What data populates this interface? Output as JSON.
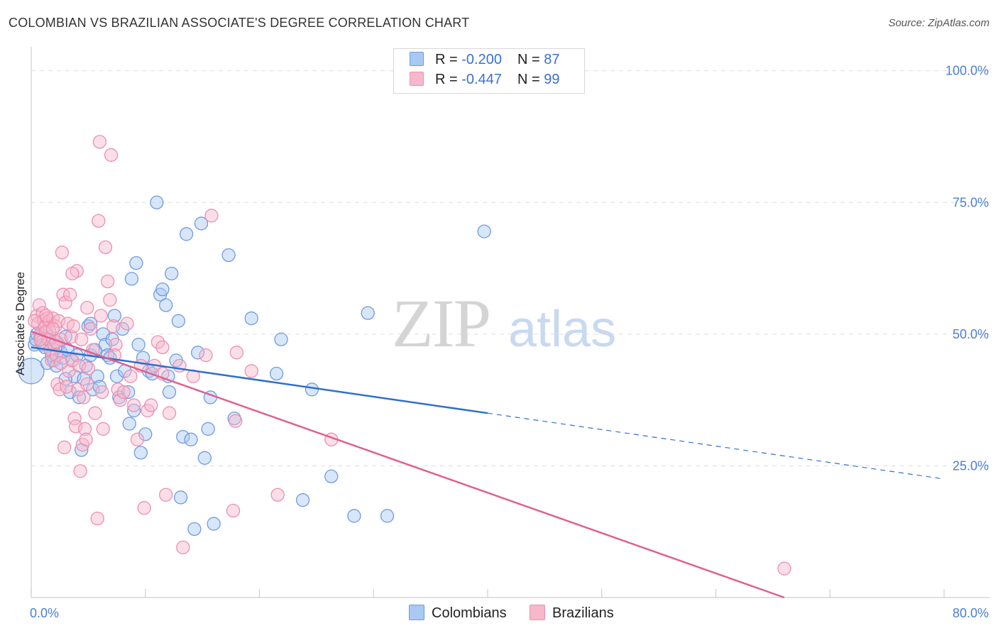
{
  "title": "COLOMBIAN VS BRAZILIAN ASSOCIATE'S DEGREE CORRELATION CHART",
  "source": "Source: ZipAtlas.com",
  "watermark": {
    "zip": "ZIP",
    "atlas": "atlas"
  },
  "legend": {
    "colombians": {
      "r_label": "R = ",
      "r_value": "-0.200",
      "n_label": "N = ",
      "n_value": "87"
    },
    "brazilians": {
      "r_label": "R = ",
      "r_value": "-0.447",
      "n_label": "N = ",
      "n_value": "99"
    }
  },
  "bottom_legend": {
    "colombians": "Colombians",
    "brazilians": "Brazilians"
  },
  "colors": {
    "blue_fill": "#a9c8f2",
    "blue_stroke": "#6f9be0",
    "blue_line": "#2f6fcf",
    "pink_fill": "#f7b8cb",
    "pink_stroke": "#ee8fae",
    "pink_line": "#e0608d",
    "tick": "#4a7fd6",
    "grid": "#dddddd"
  },
  "chart_data": {
    "type": "scatter",
    "title": "COLOMBIAN VS BRAZILIAN ASSOCIATE'S DEGREE CORRELATION CHART",
    "xlabel": "",
    "ylabel": "Associate's Degree",
    "xlim": [
      0,
      80
    ],
    "ylim": [
      0,
      104
    ],
    "x_tick_labels": [
      "0.0%",
      "80.0%"
    ],
    "y_tick_labels": [
      "25.0%",
      "50.0%",
      "75.0%",
      "100.0%"
    ],
    "y_ticks": [
      25,
      50,
      75,
      100
    ],
    "grid": true,
    "legend_position": "top-center",
    "series": [
      {
        "name": "Colombians",
        "color": "#6f9be0",
        "points": [
          [
            0.0,
            43.0
          ],
          [
            0.3,
            48.0
          ],
          [
            0.4,
            49.0
          ],
          [
            0.5,
            50.0
          ],
          [
            0.8,
            49.5
          ],
          [
            1.0,
            48.0
          ],
          [
            1.2,
            47.5
          ],
          [
            1.4,
            44.5
          ],
          [
            1.6,
            49.0
          ],
          [
            1.8,
            46.0
          ],
          [
            2.0,
            45.0
          ],
          [
            2.2,
            44.0
          ],
          [
            2.4,
            48.0
          ],
          [
            2.6,
            46.5
          ],
          [
            2.8,
            45.5
          ],
          [
            3.0,
            49.5
          ],
          [
            3.2,
            47.0
          ],
          [
            3.4,
            39.0
          ],
          [
            3.6,
            45.0
          ],
          [
            3.8,
            42.0
          ],
          [
            4.0,
            46.0
          ],
          [
            4.2,
            38.0
          ],
          [
            4.4,
            28.0
          ],
          [
            4.6,
            41.5
          ],
          [
            4.8,
            44.0
          ],
          [
            5.0,
            51.5
          ],
          [
            5.2,
            46.0
          ],
          [
            5.4,
            39.5
          ],
          [
            5.6,
            47.0
          ],
          [
            5.8,
            42.0
          ],
          [
            6.0,
            40.0
          ],
          [
            6.3,
            50.0
          ],
          [
            6.5,
            48.0
          ],
          [
            6.7,
            46.0
          ],
          [
            6.9,
            45.5
          ],
          [
            7.1,
            49.0
          ],
          [
            7.3,
            53.5
          ],
          [
            7.5,
            42.0
          ],
          [
            7.7,
            38.0
          ],
          [
            8.0,
            51.0
          ],
          [
            8.2,
            43.0
          ],
          [
            8.5,
            39.0
          ],
          [
            8.8,
            60.5
          ],
          [
            9.0,
            35.5
          ],
          [
            9.2,
            63.5
          ],
          [
            9.4,
            48.0
          ],
          [
            9.6,
            27.5
          ],
          [
            9.8,
            45.5
          ],
          [
            10.0,
            31.0
          ],
          [
            10.3,
            43.0
          ],
          [
            10.6,
            42.5
          ],
          [
            11.0,
            75.0
          ],
          [
            11.3,
            57.5
          ],
          [
            11.5,
            58.5
          ],
          [
            11.8,
            55.5
          ],
          [
            12.1,
            39.0
          ],
          [
            12.3,
            61.5
          ],
          [
            12.7,
            45.0
          ],
          [
            12.9,
            52.5
          ],
          [
            13.1,
            19.0
          ],
          [
            13.3,
            30.5
          ],
          [
            13.6,
            69.0
          ],
          [
            14.0,
            30.0
          ],
          [
            14.3,
            13.0
          ],
          [
            14.6,
            46.5
          ],
          [
            14.9,
            71.0
          ],
          [
            15.2,
            26.5
          ],
          [
            15.5,
            32.0
          ],
          [
            15.7,
            38.0
          ],
          [
            16.0,
            14.0
          ],
          [
            17.3,
            65.0
          ],
          [
            17.8,
            34.0
          ],
          [
            19.3,
            53.0
          ],
          [
            21.5,
            42.5
          ],
          [
            21.9,
            49.0
          ],
          [
            23.8,
            18.5
          ],
          [
            24.6,
            39.5
          ],
          [
            26.3,
            23.0
          ],
          [
            28.3,
            15.5
          ],
          [
            29.5,
            54.0
          ],
          [
            31.2,
            15.5
          ],
          [
            39.7,
            69.5
          ],
          [
            3.0,
            41.5
          ],
          [
            5.2,
            52.0
          ],
          [
            8.6,
            33.0
          ],
          [
            12.0,
            42.0
          ],
          [
            1.6,
            50.5
          ]
        ],
        "trend": {
          "x0": 0,
          "y0": 47.5,
          "x1": 40,
          "y1": 35.0,
          "dashed_to_x": 80,
          "dashed_to_y": 22.5
        }
      },
      {
        "name": "Brazilians",
        "color": "#ee8fae",
        "points": [
          [
            0.5,
            53.5
          ],
          [
            0.6,
            52.0
          ],
          [
            0.7,
            55.5
          ],
          [
            0.8,
            50.0
          ],
          [
            0.9,
            48.5
          ],
          [
            1.0,
            54.0
          ],
          [
            1.1,
            52.5
          ],
          [
            1.2,
            51.5
          ],
          [
            1.3,
            50.5
          ],
          [
            1.4,
            53.0
          ],
          [
            1.5,
            49.0
          ],
          [
            1.6,
            52.5
          ],
          [
            1.7,
            47.0
          ],
          [
            1.8,
            45.0
          ],
          [
            1.9,
            53.0
          ],
          [
            2.0,
            48.0
          ],
          [
            2.1,
            51.5
          ],
          [
            2.2,
            46.0
          ],
          [
            2.3,
            40.5
          ],
          [
            2.4,
            52.5
          ],
          [
            2.5,
            39.5
          ],
          [
            2.6,
            49.0
          ],
          [
            2.7,
            65.5
          ],
          [
            2.8,
            57.5
          ],
          [
            2.9,
            28.5
          ],
          [
            3.0,
            56.0
          ],
          [
            3.1,
            40.0
          ],
          [
            3.2,
            52.0
          ],
          [
            3.3,
            43.0
          ],
          [
            3.4,
            57.5
          ],
          [
            3.5,
            49.5
          ],
          [
            3.6,
            45.0
          ],
          [
            3.7,
            51.5
          ],
          [
            3.8,
            34.0
          ],
          [
            3.9,
            32.5
          ],
          [
            4.0,
            62.0
          ],
          [
            4.1,
            39.5
          ],
          [
            4.2,
            44.0
          ],
          [
            4.3,
            24.0
          ],
          [
            4.4,
            49.0
          ],
          [
            4.5,
            29.0
          ],
          [
            4.6,
            38.0
          ],
          [
            4.7,
            32.0
          ],
          [
            4.8,
            30.0
          ],
          [
            4.9,
            40.5
          ],
          [
            5.0,
            43.5
          ],
          [
            5.2,
            51.0
          ],
          [
            5.4,
            47.0
          ],
          [
            5.6,
            35.0
          ],
          [
            5.8,
            15.0
          ],
          [
            5.9,
            71.5
          ],
          [
            6.0,
            86.5
          ],
          [
            6.1,
            53.5
          ],
          [
            6.3,
            32.0
          ],
          [
            6.5,
            66.5
          ],
          [
            6.7,
            60.0
          ],
          [
            6.9,
            56.5
          ],
          [
            7.0,
            84.0
          ],
          [
            7.2,
            51.5
          ],
          [
            7.4,
            48.0
          ],
          [
            7.6,
            39.5
          ],
          [
            7.8,
            37.5
          ],
          [
            8.1,
            39.0
          ],
          [
            8.4,
            52.0
          ],
          [
            8.7,
            42.0
          ],
          [
            9.0,
            36.5
          ],
          [
            9.3,
            30.0
          ],
          [
            9.6,
            44.0
          ],
          [
            9.9,
            17.0
          ],
          [
            10.2,
            35.5
          ],
          [
            10.5,
            36.5
          ],
          [
            10.8,
            44.0
          ],
          [
            11.1,
            48.5
          ],
          [
            11.5,
            42.5
          ],
          [
            11.8,
            19.5
          ],
          [
            12.1,
            35.0
          ],
          [
            13.0,
            44.0
          ],
          [
            13.3,
            9.5
          ],
          [
            14.2,
            42.0
          ],
          [
            15.3,
            46.0
          ],
          [
            15.8,
            72.5
          ],
          [
            17.7,
            16.5
          ],
          [
            17.9,
            33.5
          ],
          [
            18.0,
            46.5
          ],
          [
            19.3,
            43.0
          ],
          [
            21.6,
            19.5
          ],
          [
            26.3,
            30.0
          ],
          [
            66.0,
            5.5
          ],
          [
            0.8,
            49.0
          ],
          [
            1.9,
            51.0
          ],
          [
            3.6,
            61.5
          ],
          [
            6.2,
            39.0
          ],
          [
            11.5,
            47.5
          ],
          [
            2.2,
            48.5
          ],
          [
            4.9,
            55.0
          ],
          [
            7.3,
            46.0
          ],
          [
            1.3,
            53.5
          ],
          [
            0.3,
            52.5
          ],
          [
            2.6,
            44.5
          ]
        ],
        "trend": {
          "x0": 0,
          "y0": 50.5,
          "x1": 66,
          "y1": 0.0
        }
      }
    ]
  }
}
